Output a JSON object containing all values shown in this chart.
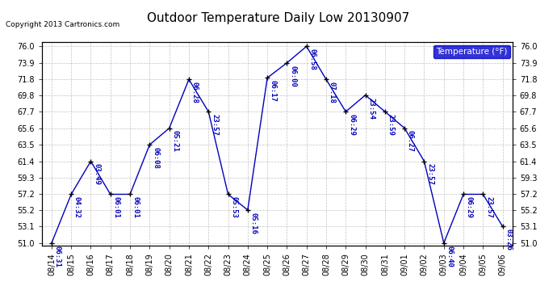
{
  "title": "Outdoor Temperature Daily Low 20130907",
  "copyright": "Copyright 2013 Cartronics.com",
  "legend_label": "Temperature (°F)",
  "line_color": "#0000bb",
  "background_color": "#ffffff",
  "grid_color": "#bbbbbb",
  "dates": [
    "08/14",
    "08/15",
    "08/16",
    "08/17",
    "08/18",
    "08/19",
    "08/20",
    "08/21",
    "08/22",
    "08/23",
    "08/24",
    "08/25",
    "08/26",
    "08/27",
    "08/28",
    "08/29",
    "08/30",
    "08/31",
    "09/01",
    "09/02",
    "09/03",
    "09/04",
    "09/05",
    "09/06"
  ],
  "values": [
    51.0,
    57.2,
    61.4,
    57.2,
    57.2,
    63.5,
    65.6,
    71.8,
    67.7,
    57.2,
    55.2,
    72.0,
    73.9,
    76.0,
    71.8,
    67.7,
    69.8,
    67.7,
    65.6,
    61.4,
    51.0,
    57.2,
    57.2,
    53.1
  ],
  "labels": [
    "06:31",
    "04:32",
    "03:49",
    "06:01",
    "06:01",
    "06:08",
    "05:21",
    "06:28",
    "23:57",
    "05:53",
    "05:16",
    "06:17",
    "06:00",
    "06:58",
    "07:18",
    "06:29",
    "23:54",
    "23:59",
    "06:27",
    "23:57",
    "06:40",
    "06:29",
    "23:57",
    "03:26"
  ],
  "ylim": [
    51.0,
    76.0
  ],
  "yticks": [
    51.0,
    53.1,
    55.2,
    57.2,
    59.3,
    61.4,
    63.5,
    65.6,
    67.7,
    69.8,
    71.8,
    73.9,
    76.0
  ],
  "title_fontsize": 11,
  "label_fontsize": 6.5,
  "tick_fontsize": 7,
  "legend_fontsize": 7.5,
  "copyright_fontsize": 6.5
}
